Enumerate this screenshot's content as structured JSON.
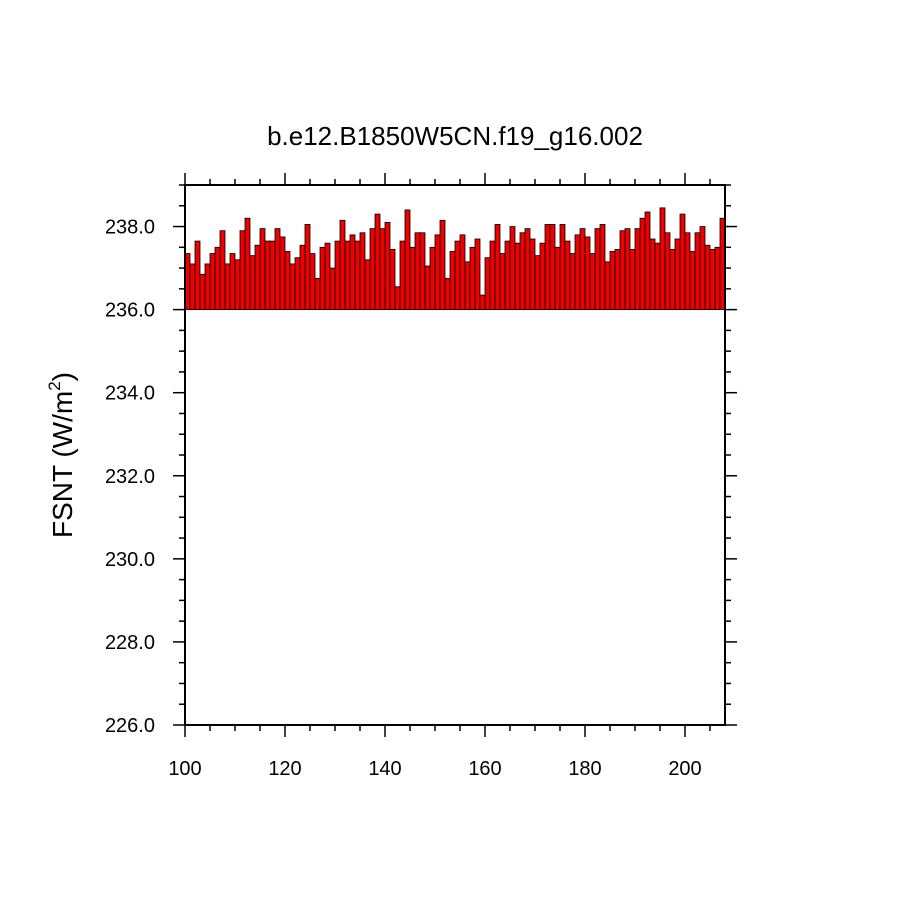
{
  "chart_data": {
    "type": "bar",
    "title": "b.e12.B1850W5CN.f19_g16.002",
    "xlabel": "",
    "ylabel": "FSNT (W/m",
    "ylabel_superscript": "2",
    "ylabel_suffix": ")",
    "xlim": [
      100,
      208
    ],
    "ylim": [
      226.0,
      239.0
    ],
    "x_ticks": [
      100,
      120,
      140,
      160,
      180,
      200
    ],
    "y_ticks": [
      226.0,
      228.0,
      230.0,
      232.0,
      234.0,
      236.0,
      238.0
    ],
    "y_tick_labels": [
      "226.0",
      "228.0",
      "230.0",
      "232.0",
      "234.0",
      "236.0",
      "238.0"
    ],
    "bar_base": 236.0,
    "bar_color": "#ee0000",
    "bar_edge_color": "#000000",
    "x": [
      100,
      101,
      102,
      103,
      104,
      105,
      106,
      107,
      108,
      109,
      110,
      111,
      112,
      113,
      114,
      115,
      116,
      117,
      118,
      119,
      120,
      121,
      122,
      123,
      124,
      125,
      126,
      127,
      128,
      129,
      130,
      131,
      132,
      133,
      134,
      135,
      136,
      137,
      138,
      139,
      140,
      141,
      142,
      143,
      144,
      145,
      146,
      147,
      148,
      149,
      150,
      151,
      152,
      153,
      154,
      155,
      156,
      157,
      158,
      159,
      160,
      161,
      162,
      163,
      164,
      165,
      166,
      167,
      168,
      169,
      170,
      171,
      172,
      173,
      174,
      175,
      176,
      177,
      178,
      179,
      180,
      181,
      182,
      183,
      184,
      185,
      186,
      187,
      188,
      189,
      190,
      191,
      192,
      193,
      194,
      195,
      196,
      197,
      198,
      199,
      200,
      201,
      202,
      203,
      204,
      205,
      206,
      207
    ],
    "values": [
      237.35,
      237.1,
      237.65,
      236.85,
      237.1,
      237.35,
      237.5,
      237.9,
      237.1,
      237.35,
      237.2,
      237.9,
      238.2,
      237.3,
      237.55,
      237.95,
      237.65,
      237.65,
      237.95,
      237.75,
      237.4,
      237.1,
      237.25,
      237.55,
      238.05,
      237.35,
      236.75,
      237.5,
      237.6,
      237.0,
      237.65,
      238.15,
      237.65,
      237.8,
      237.65,
      237.85,
      237.2,
      237.95,
      238.3,
      237.95,
      238.1,
      237.45,
      236.55,
      237.65,
      238.4,
      237.5,
      237.85,
      237.85,
      237.05,
      237.5,
      237.8,
      238.15,
      236.75,
      237.4,
      237.65,
      237.8,
      237.15,
      237.5,
      237.7,
      236.35,
      237.25,
      237.65,
      238.05,
      237.35,
      237.65,
      238.0,
      237.6,
      237.85,
      237.95,
      237.7,
      237.3,
      237.6,
      238.05,
      238.05,
      237.5,
      238.05,
      237.65,
      237.35,
      237.8,
      237.95,
      237.75,
      237.35,
      237.95,
      238.05,
      237.15,
      237.4,
      237.45,
      237.9,
      237.95,
      237.45,
      237.95,
      238.2,
      238.35,
      237.7,
      237.6,
      238.45,
      237.85,
      237.45,
      237.7,
      238.3,
      237.85,
      237.4,
      237.85,
      238.0,
      237.55,
      237.45,
      237.5,
      238.2
    ]
  }
}
